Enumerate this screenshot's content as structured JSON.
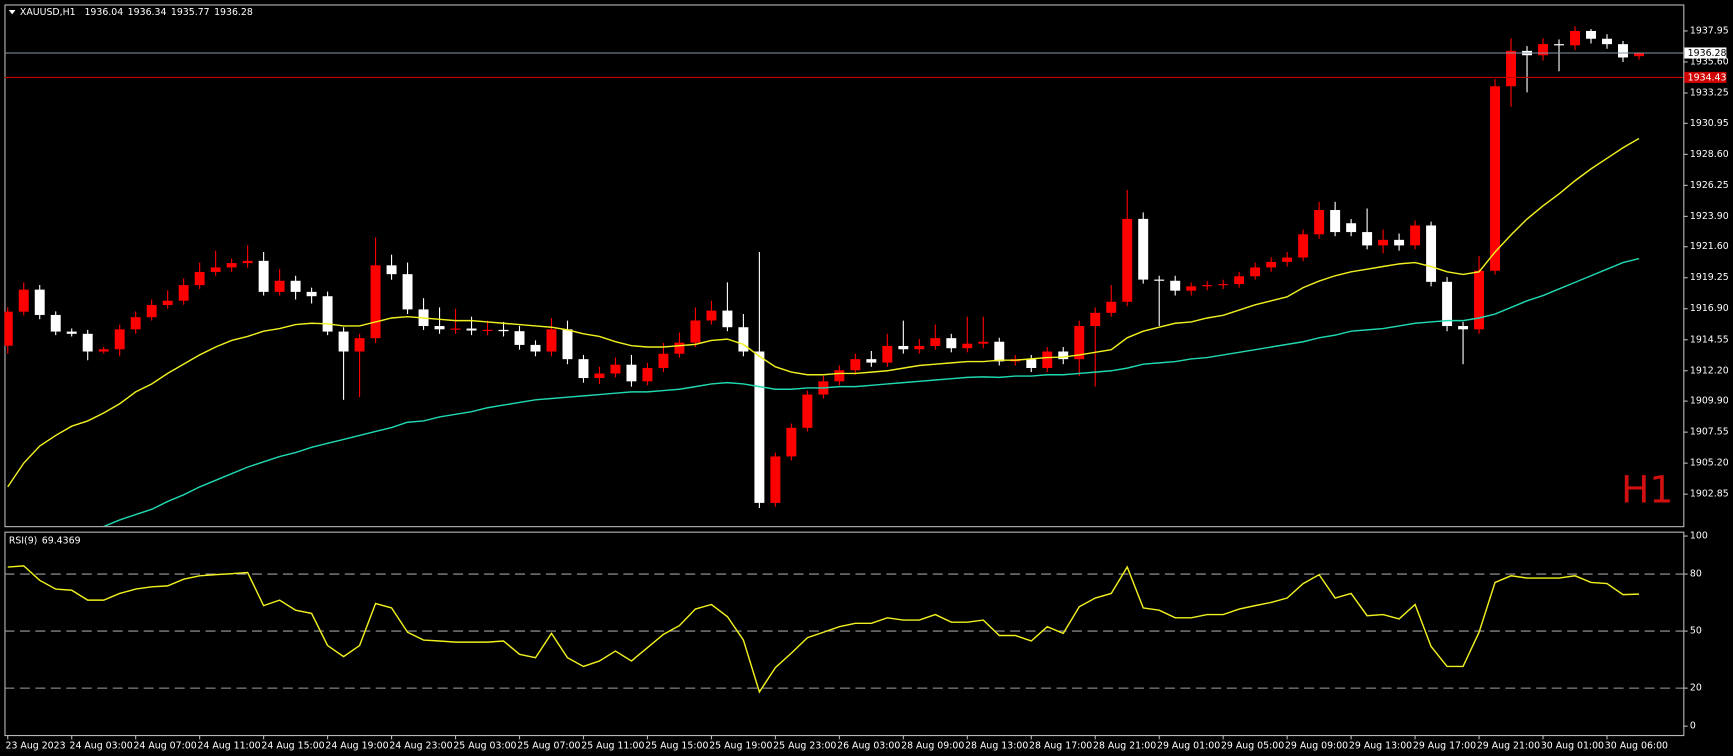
{
  "chart_data": {
    "type": "candlestick",
    "symbol": "XAUUSD,H1",
    "watermark": "H1",
    "up_color": "#ff0000",
    "down_color": "#ffffff",
    "categories": [
      "23 Aug 2023",
      null,
      null,
      null,
      "24 Aug 03:00",
      null,
      null,
      null,
      "24 Aug 07:00",
      null,
      null,
      null,
      "24 Aug 11:00",
      null,
      null,
      null,
      "24 Aug 15:00",
      null,
      null,
      null,
      "24 Aug 19:00",
      null,
      null,
      null,
      "24 Aug 23:00",
      null,
      null,
      null,
      "25 Aug 03:00",
      null,
      null,
      null,
      "25 Aug 07:00",
      null,
      null,
      null,
      "25 Aug 11:00",
      null,
      null,
      null,
      "25 Aug 15:00",
      null,
      null,
      null,
      "25 Aug 19:00",
      null,
      null,
      null,
      "25 Aug 23:00",
      null,
      null,
      null,
      "26 Aug 03:00",
      null,
      null,
      null,
      "28 Aug 09:00",
      null,
      null,
      null,
      "28 Aug 13:00",
      null,
      null,
      null,
      "28 Aug 17:00",
      null,
      null,
      null,
      "28 Aug 21:00",
      null,
      null,
      null,
      "29 Aug 01:00",
      null,
      null,
      null,
      "29 Aug 05:00",
      null,
      null,
      null,
      "29 Aug 09:00",
      null,
      null,
      null,
      "29 Aug 13:00",
      null,
      null,
      null,
      "29 Aug 17:00",
      null,
      null,
      null,
      "29 Aug 21:00",
      null,
      null,
      null,
      "30 Aug 01:00",
      null,
      null,
      null,
      "30 Aug 06:00",
      null,
      null
    ],
    "open": [
      1914.1,
      1916.68,
      1918.35,
      1916.43,
      1915.17,
      1915.0,
      1913.66,
      1913.83,
      1915.34,
      1916.26,
      1917.18,
      1917.51,
      1918.69,
      1919.69,
      1920.03,
      1920.36,
      1920.53,
      1918.18,
      1919.02,
      1918.18,
      1917.85,
      1915.17,
      1913.66,
      1914.67,
      1920.19,
      1919.52,
      1916.85,
      1915.59,
      1915.34,
      1915.4,
      1915.25,
      1915.3,
      1915.2,
      1914.16,
      1913.66,
      1915.34,
      1913.08,
      1911.65,
      1911.99,
      1912.66,
      1911.4,
      1912.41,
      1913.49,
      1914.33,
      1916.01,
      1916.76,
      1915.5,
      1913.66,
      1902.19,
      1905.71,
      1907.88,
      1910.4,
      1911.4,
      1912.24,
      1913.08,
      1912.82,
      1914.08,
      1913.83,
      1914.08,
      1914.67,
      1913.91,
      1914.25,
      1914.4,
      1912.91,
      1913.08,
      1912.41,
      1913.66,
      1913.08,
      1915.59,
      1916.59,
      1917.43,
      1923.71,
      1919.11,
      1919.02,
      1918.27,
      1918.6,
      1918.69,
      1918.77,
      1919.36,
      1920.03,
      1920.45,
      1920.78,
      1922.54,
      1924.38,
      1923.38,
      1922.71,
      1921.7,
      1922.12,
      1921.7,
      1923.21,
      1918.94,
      1915.59,
      1915.34,
      1919.78,
      1933.76,
      1936.44,
      1936.11,
      1936.95,
      1936.86,
      1937.95,
      1937.36,
      1936.95,
      1936.04
    ],
    "high": [
      1917.0,
      1918.9,
      1918.7,
      1916.7,
      1915.4,
      1915.3,
      1914.0,
      1915.7,
      1916.7,
      1917.6,
      1918.3,
      1919.2,
      1920.4,
      1921.3,
      1920.7,
      1921.7,
      1921.2,
      1919.9,
      1919.4,
      1918.5,
      1918.2,
      1915.5,
      1915.0,
      1922.3,
      1921.0,
      1920.4,
      1917.7,
      1917.0,
      1916.9,
      1916.3,
      1916.0,
      1915.9,
      1915.6,
      1914.5,
      1916.2,
      1916.0,
      1913.4,
      1912.5,
      1913.2,
      1913.4,
      1912.8,
      1914.3,
      1915.1,
      1917.0,
      1917.5,
      1918.9,
      1916.5,
      1921.2,
      1906.0,
      1908.2,
      1910.7,
      1911.8,
      1912.6,
      1913.5,
      1913.7,
      1915.0,
      1916.0,
      1914.6,
      1915.7,
      1915.0,
      1916.3,
      1916.3,
      1914.7,
      1913.4,
      1913.4,
      1914.0,
      1914.0,
      1916.0,
      1917.0,
      1918.7,
      1925.9,
      1924.2,
      1919.4,
      1919.4,
      1918.9,
      1919.0,
      1919.1,
      1919.7,
      1920.4,
      1920.8,
      1921.2,
      1922.9,
      1925.0,
      1925.0,
      1923.7,
      1924.5,
      1922.9,
      1922.6,
      1923.6,
      1923.5,
      1919.3,
      1915.9,
      1920.9,
      1934.3,
      1937.4,
      1936.8,
      1937.4,
      1937.3,
      1938.3,
      1938.1,
      1937.7,
      1937.2,
      1936.34
    ],
    "low": [
      1913.5,
      1916.4,
      1916.1,
      1914.9,
      1914.8,
      1913.0,
      1913.5,
      1913.3,
      1915.0,
      1916.0,
      1916.9,
      1917.2,
      1918.4,
      1919.4,
      1919.7,
      1920.0,
      1917.9,
      1917.9,
      1917.6,
      1917.3,
      1914.9,
      1910.0,
      1910.2,
      1914.3,
      1919.1,
      1916.5,
      1915.3,
      1915.0,
      1915.0,
      1914.9,
      1914.9,
      1914.8,
      1913.8,
      1913.3,
      1913.3,
      1912.7,
      1911.3,
      1911.2,
      1911.7,
      1911.0,
      1911.1,
      1912.1,
      1913.2,
      1914.0,
      1915.7,
      1915.2,
      1913.3,
      1901.8,
      1901.9,
      1905.4,
      1907.6,
      1910.1,
      1911.1,
      1911.9,
      1912.5,
      1912.5,
      1913.5,
      1913.5,
      1913.8,
      1913.6,
      1913.6,
      1913.9,
      1912.6,
      1912.6,
      1912.1,
      1912.1,
      1912.7,
      1911.8,
      1911.0,
      1916.3,
      1917.1,
      1918.8,
      1915.6,
      1917.9,
      1917.9,
      1918.3,
      1918.4,
      1918.5,
      1919.1,
      1919.7,
      1920.1,
      1920.5,
      1922.2,
      1922.4,
      1922.4,
      1921.4,
      1921.1,
      1921.3,
      1921.4,
      1918.6,
      1915.2,
      1912.7,
      1915.0,
      1919.5,
      1932.2,
      1933.3,
      1935.7,
      1934.9,
      1936.5,
      1937.0,
      1936.6,
      1935.6,
      1935.77
    ],
    "close": [
      1916.68,
      1918.35,
      1916.43,
      1915.17,
      1915.0,
      1913.66,
      1913.83,
      1915.34,
      1916.26,
      1917.18,
      1917.51,
      1918.69,
      1919.69,
      1920.03,
      1920.36,
      1920.53,
      1918.18,
      1919.02,
      1918.18,
      1917.85,
      1915.17,
      1913.66,
      1914.67,
      1920.19,
      1919.52,
      1916.85,
      1915.59,
      1915.34,
      1915.4,
      1915.25,
      1915.3,
      1915.2,
      1914.16,
      1913.66,
      1915.34,
      1913.08,
      1911.65,
      1911.99,
      1912.66,
      1911.4,
      1912.41,
      1913.49,
      1914.33,
      1916.01,
      1916.76,
      1915.5,
      1913.66,
      1902.19,
      1905.71,
      1907.88,
      1910.4,
      1911.4,
      1912.24,
      1913.08,
      1912.82,
      1914.08,
      1913.83,
      1914.08,
      1914.67,
      1913.91,
      1914.25,
      1914.4,
      1912.91,
      1913.08,
      1912.41,
      1913.66,
      1913.08,
      1915.59,
      1916.59,
      1917.43,
      1923.71,
      1919.11,
      1919.02,
      1918.27,
      1918.6,
      1918.69,
      1918.77,
      1919.36,
      1920.03,
      1920.45,
      1920.78,
      1922.54,
      1924.38,
      1922.71,
      1922.71,
      1921.7,
      1922.12,
      1921.7,
      1923.21,
      1918.94,
      1915.59,
      1915.34,
      1919.78,
      1933.76,
      1936.44,
      1936.11,
      1936.95,
      1936.86,
      1937.95,
      1937.36,
      1936.95,
      1935.94,
      1936.28
    ],
    "lines": [
      {
        "color": "#f0f020",
        "values": [
          1903.4,
          1905.2,
          1906.5,
          1907.3,
          1908.0,
          1908.4,
          1909.0,
          1909.7,
          1910.6,
          1911.2,
          1912.0,
          1912.7,
          1913.4,
          1914.0,
          1914.5,
          1914.8,
          1915.2,
          1915.4,
          1915.7,
          1915.8,
          1915.76,
          1915.6,
          1915.6,
          1915.9,
          1916.2,
          1916.3,
          1916.2,
          1916.1,
          1916.0,
          1916.0,
          1915.9,
          1915.8,
          1915.7,
          1915.6,
          1915.5,
          1915.3,
          1915.0,
          1914.8,
          1914.4,
          1914.1,
          1914.0,
          1914.0,
          1914.1,
          1914.2,
          1914.5,
          1914.6,
          1914.2,
          1913.3,
          1912.5,
          1912.1,
          1911.9,
          1911.9,
          1912.0,
          1912.0,
          1912.1,
          1912.2,
          1912.4,
          1912.6,
          1912.7,
          1912.8,
          1912.9,
          1912.9,
          1913.0,
          1913.0,
          1913.1,
          1913.2,
          1913.24,
          1913.4,
          1913.6,
          1913.8,
          1914.7,
          1915.2,
          1915.5,
          1915.8,
          1915.9,
          1916.2,
          1916.4,
          1916.8,
          1917.2,
          1917.5,
          1917.8,
          1918.5,
          1919.0,
          1919.4,
          1919.7,
          1919.9,
          1920.1,
          1920.3,
          1920.4,
          1920.1,
          1919.7,
          1919.5,
          1919.7,
          1921.2,
          1922.5,
          1923.7,
          1924.7,
          1925.6,
          1926.6,
          1927.5,
          1928.3,
          1929.1,
          1929.8
        ]
      },
      {
        "color": "#20d8b0",
        "values": [
          null,
          null,
          null,
          null,
          null,
          null,
          1900.4,
          1900.9,
          1901.3,
          1901.7,
          1902.3,
          1902.8,
          1903.4,
          1903.9,
          1904.4,
          1904.9,
          1905.3,
          1905.7,
          1906.0,
          1906.4,
          1906.7,
          1907.0,
          1907.3,
          1907.6,
          1907.9,
          1908.3,
          1908.4,
          1908.7,
          1908.9,
          1909.1,
          1909.4,
          1909.6,
          1909.8,
          1910.0,
          1910.1,
          1910.2,
          1910.3,
          1910.4,
          1910.5,
          1910.6,
          1910.6,
          1910.7,
          1910.8,
          1911.0,
          1911.2,
          1911.3,
          1911.2,
          1911.0,
          1910.8,
          1910.8,
          1910.9,
          1910.9,
          1911.0,
          1911.0,
          1911.1,
          1911.2,
          1911.3,
          1911.4,
          1911.5,
          1911.6,
          1911.7,
          1911.74,
          1911.7,
          1911.8,
          1911.8,
          1911.9,
          1911.9,
          1912.0,
          1912.1,
          1912.2,
          1912.4,
          1912.7,
          1912.8,
          1912.9,
          1913.1,
          1913.2,
          1913.4,
          1913.6,
          1913.8,
          1914.0,
          1914.2,
          1914.4,
          1914.7,
          1914.9,
          1915.2,
          1915.3,
          1915.4,
          1915.6,
          1915.8,
          1915.9,
          1916.0,
          1916.0,
          1916.2,
          1916.5,
          1917.0,
          1917.5,
          1917.9,
          1918.4,
          1918.9,
          1919.4,
          1919.9,
          1920.4,
          1920.7
        ]
      }
    ],
    "price_lines": [
      {
        "value": 1936.28,
        "color": "#8a96a4",
        "label_fill": "#ffffff",
        "label_color": "#000000"
      },
      {
        "value": 1934.43,
        "color": "#c00000",
        "label_fill": "#d00000",
        "label_color": "#ffffff"
      }
    ],
    "ylim": [
      1900.43,
      1939.96
    ],
    "yticks": [
      1937.95,
      {
        "value": 1935.6,
        "label": "1935.60"
      },
      1933.25,
      1930.95,
      {
        "value": 1928.6,
        "label": "1928.60"
      },
      1926.25,
      {
        "value": 1923.9,
        "label": "1923.90"
      },
      {
        "value": 1921.6,
        "label": "1921.60"
      },
      1919.25,
      {
        "value": 1916.9,
        "label": "1916.90"
      },
      1914.55,
      {
        "value": 1912.2,
        "label": "1912.20"
      },
      {
        "value": 1909.9,
        "label": "1909.90"
      },
      1907.55,
      {
        "value": 1905.2,
        "label": "1905.20"
      },
      1902.85
    ],
    "rsi": {
      "label": "RSI(9)",
      "color": "#f0f020",
      "ylim": [
        -4.65,
        102.33
      ],
      "yticks": [
        0,
        20,
        50,
        80,
        100
      ],
      "levels": [
        20,
        50,
        80
      ],
      "values": [
        83.7,
        84.3,
        76.7,
        72.1,
        71.5,
        66.3,
        66.3,
        69.8,
        72.1,
        73.3,
        73.8,
        77.3,
        79.1,
        79.7,
        80.2,
        80.8,
        63.4,
        66.3,
        61.0,
        59.3,
        42.4,
        36.6,
        42.4,
        64.5,
        62.2,
        49.4,
        45.3,
        44.8,
        44.2,
        44.2,
        44.2,
        44.8,
        37.8,
        36.0,
        48.8,
        36.0,
        31.4,
        34.3,
        39.5,
        34.3,
        41.3,
        48.3,
        52.9,
        61.6,
        64.0,
        57.6,
        45.3,
        18.0,
        30.8,
        38.4,
        46.5,
        49.4,
        52.3,
        54.1,
        54.1,
        57.0,
        55.8,
        55.8,
        58.7,
        54.7,
        54.7,
        55.8,
        47.7,
        47.7,
        44.8,
        52.3,
        48.8,
        62.8,
        67.4,
        69.8,
        83.7,
        62.2,
        61.0,
        57.0,
        57.0,
        58.7,
        58.7,
        61.6,
        63.4,
        65.1,
        67.4,
        75.0,
        79.7,
        67.4,
        69.8,
        58.1,
        58.7,
        56.4,
        64.0,
        41.9,
        31.4,
        31.4,
        49.4,
        75.6,
        79.1,
        77.9,
        77.9,
        77.9,
        79.1,
        75.6,
        75.0,
        69.2,
        69.4369
      ]
    }
  }
}
